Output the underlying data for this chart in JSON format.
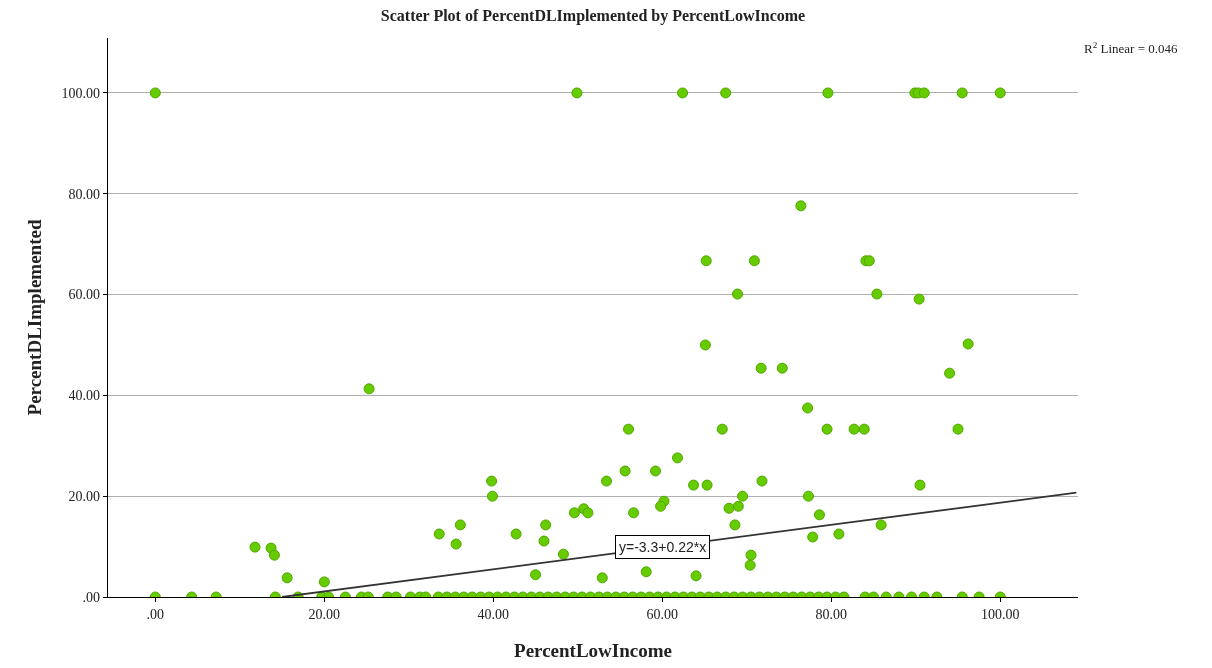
{
  "chart_data": {
    "type": "scatter",
    "title": "Scatter Plot of PercentDLImplemented by PercentLowIncome",
    "xlabel": "PercentLowIncome",
    "ylabel": "PercentDLImplemented",
    "series": [
      {
        "color": "#66cc00",
        "marker": "circle",
        "x": [
          0,
          49.9,
          62.4,
          67.5,
          79.6,
          89.9,
          90.3,
          91.0,
          95.5,
          100.0,
          76.4,
          65.2,
          70.9,
          84.1,
          84.5,
          68.9,
          85.4,
          90.4,
          96.2,
          65.1,
          94.0,
          71.7,
          74.2,
          77.2,
          79.5,
          82.7,
          83.9,
          95.0,
          71.8,
          90.5,
          77.3,
          78.6,
          77.8,
          80.9,
          85.9,
          70.5,
          70.4,
          56.0,
          67.1,
          61.8,
          55.6,
          59.2,
          53.4,
          39.8,
          39.9,
          63.7,
          65.3,
          69.5,
          60.2,
          59.8,
          69.0,
          67.9,
          49.6,
          50.7,
          51.2,
          56.6,
          68.6,
          36.1,
          46.2,
          33.6,
          35.6,
          42.7,
          46.0,
          48.3,
          45.0,
          52.9,
          58.1,
          64.0,
          25.3,
          11.8,
          13.7,
          14.1,
          15.6,
          20.0,
          0,
          4.3,
          7.2,
          14.2,
          16.9,
          19.7,
          20.5,
          22.5,
          24.4,
          25.2,
          27.5,
          28.5,
          30.2,
          31.3,
          32.0,
          33.5,
          34.5,
          35.5,
          36.5,
          37.5,
          38.5,
          39.5,
          40.5,
          41.5,
          42.5,
          43.5,
          44.5,
          45.5,
          46.5,
          47.5,
          48.5,
          49.5,
          50.5,
          51.5,
          52.5,
          53.5,
          54.5,
          55.5,
          56.5,
          57.5,
          58.5,
          59.5,
          60.5,
          61.5,
          62.5,
          63.5,
          64.5,
          65.5,
          66.5,
          67.5,
          68.5,
          69.5,
          70.5,
          71.5,
          72.5,
          73.5,
          74.5,
          75.5,
          76.5,
          77.5,
          78.5,
          79.5,
          80.5,
          81.5,
          84.0,
          85.0,
          86.5,
          88.0,
          89.5,
          91.0,
          92.5,
          95.5,
          97.5,
          100.0
        ],
        "values": [
          100,
          100,
          100,
          100,
          100,
          100,
          100,
          100,
          100,
          100,
          77.6,
          66.7,
          66.7,
          66.7,
          66.7,
          60.1,
          60.1,
          59.1,
          50.2,
          50.0,
          44.4,
          45.4,
          45.4,
          37.5,
          33.3,
          33.3,
          33.3,
          33.3,
          23.0,
          22.2,
          20.0,
          16.3,
          11.9,
          12.5,
          14.3,
          8.3,
          6.3,
          33.3,
          33.3,
          27.6,
          25.0,
          25.0,
          23.0,
          23.0,
          20.0,
          22.2,
          22.2,
          20.0,
          19.0,
          18.0,
          18.0,
          17.6,
          16.7,
          17.5,
          16.7,
          16.7,
          14.3,
          14.3,
          14.3,
          12.5,
          10.5,
          12.5,
          11.1,
          8.5,
          4.4,
          3.8,
          5.0,
          4.2,
          41.3,
          9.9,
          9.7,
          8.3,
          3.8,
          3.0,
          0,
          0,
          0,
          0,
          0,
          0,
          0,
          0,
          0,
          0,
          0,
          0,
          0,
          0,
          0,
          0,
          0,
          0,
          0,
          0,
          0,
          0,
          0,
          0,
          0,
          0,
          0,
          0,
          0,
          0,
          0,
          0,
          0,
          0,
          0,
          0,
          0,
          0,
          0,
          0,
          0,
          0,
          0,
          0,
          0,
          0,
          0,
          0,
          0,
          0,
          0,
          0,
          0,
          0,
          0,
          0,
          0,
          0,
          0,
          0,
          0,
          0,
          0,
          0,
          0,
          0,
          0,
          0,
          0,
          0,
          0,
          0,
          0,
          0
        ]
      },
      {
        "type": "line",
        "color": "#333333",
        "line_style": "solid",
        "x": [
          15,
          109
        ],
        "values": [
          0,
          20.7
        ]
      }
    ],
    "annotations": [
      {
        "text": "y=-3.3+0.22*x",
        "x": 60,
        "y": 9.9
      },
      "R$^{2}$ Linear = 0.046"
    ],
    "xlim": [
      -5.6,
      109.2
    ],
    "ylim": [
      0,
      110.9
    ],
    "xticks": [
      {
        "value": 0,
        "label": ".00"
      },
      {
        "value": 20,
        "label": "20.00"
      },
      {
        "value": 40,
        "label": "40.00"
      },
      {
        "value": 60,
        "label": "60.00"
      },
      {
        "value": 80,
        "label": "80.00"
      },
      {
        "value": 100,
        "label": "100.00"
      }
    ],
    "yticks": [
      {
        "value": 0,
        "label": ".00"
      },
      {
        "value": 20,
        "label": "20.00"
      },
      {
        "value": 40,
        "label": "40.00"
      },
      {
        "value": 60,
        "label": "60.00"
      },
      {
        "value": 80,
        "label": "80.00"
      },
      {
        "value": 100,
        "label": "100.00"
      }
    ],
    "grid": "y"
  }
}
